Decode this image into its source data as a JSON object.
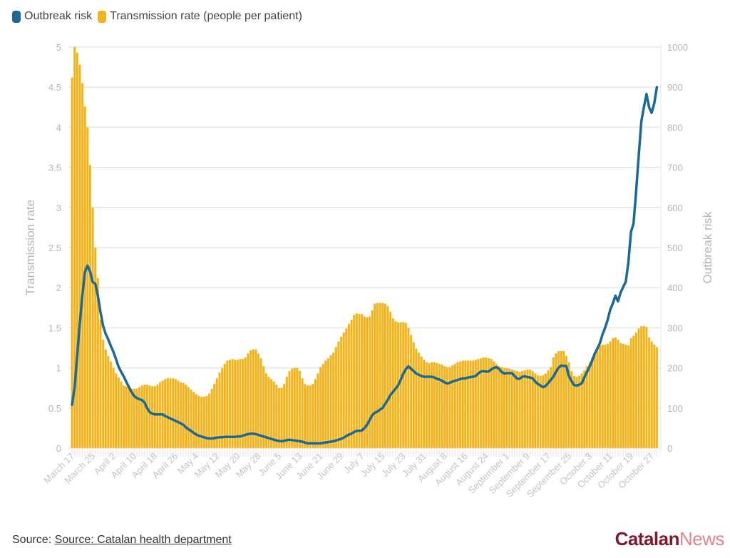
{
  "legend": {
    "items": [
      {
        "label": "Outbreak risk",
        "color": "#1d6996"
      },
      {
        "label": "Transmission rate (people per patient)",
        "color": "#f2b21a"
      }
    ]
  },
  "footer": {
    "source_prefix": "Source:",
    "source_link": "Source: Catalan health department",
    "logo_part1": "Catalan",
    "logo_part2": "News"
  },
  "chart_data": {
    "type": "bar+line",
    "title": "",
    "start_date": "March 17",
    "x_tick_labels": [
      "March 17",
      "March 25",
      "April 2",
      "April 10",
      "April 18",
      "April 26",
      "May 4",
      "May 12",
      "May 20",
      "May 28",
      "June 5",
      "June 13",
      "June 21",
      "June 29",
      "July 7",
      "July 15",
      "July 23",
      "July 31",
      "August 8",
      "August 16",
      "August 24",
      "September 1",
      "September 9",
      "September 17",
      "September 25",
      "October 3",
      "October 11",
      "October 19",
      "October 27"
    ],
    "x_tick_every_days": 8,
    "left_axis": {
      "label": "Transmission rate",
      "range": [
        0,
        5
      ],
      "ticks": [
        "0",
        "0.5",
        "1",
        "1.5",
        "2",
        "2.5",
        "3",
        "3.5",
        "4",
        "4.5",
        "5"
      ]
    },
    "right_axis": {
      "label": "Outbreak risk",
      "range": [
        0,
        1000
      ],
      "ticks": [
        "0",
        "100",
        "200",
        "300",
        "400",
        "500",
        "600",
        "700",
        "800",
        "900",
        "1000"
      ]
    },
    "grid": true,
    "legend_position": "top-left",
    "series": [
      {
        "name": "Transmission rate (people per patient)",
        "type": "bar",
        "axis": "left",
        "color": "#f2b21a",
        "values": [
          4.62,
          5.0,
          4.93,
          4.78,
          4.55,
          4.26,
          4.0,
          3.53,
          3.0,
          2.5,
          2.12,
          1.6,
          1.35,
          1.23,
          1.15,
          1.08,
          1.0,
          0.93,
          0.88,
          0.83,
          0.78,
          0.77,
          0.76,
          0.74,
          0.74,
          0.74,
          0.76,
          0.78,
          0.79,
          0.79,
          0.78,
          0.77,
          0.77,
          0.79,
          0.82,
          0.84,
          0.86,
          0.87,
          0.87,
          0.87,
          0.86,
          0.84,
          0.82,
          0.81,
          0.79,
          0.76,
          0.73,
          0.7,
          0.67,
          0.65,
          0.64,
          0.64,
          0.65,
          0.68,
          0.74,
          0.8,
          0.87,
          0.94,
          1.0,
          1.05,
          1.09,
          1.1,
          1.11,
          1.1,
          1.1,
          1.11,
          1.11,
          1.13,
          1.18,
          1.22,
          1.23,
          1.23,
          1.18,
          1.12,
          1.02,
          0.93,
          0.89,
          0.86,
          0.83,
          0.79,
          0.75,
          0.75,
          0.8,
          0.89,
          0.96,
          0.99,
          1.0,
          1.0,
          0.96,
          0.87,
          0.8,
          0.78,
          0.78,
          0.8,
          0.86,
          0.93,
          1.01,
          1.05,
          1.09,
          1.12,
          1.16,
          1.19,
          1.26,
          1.33,
          1.39,
          1.44,
          1.49,
          1.55,
          1.6,
          1.66,
          1.68,
          1.67,
          1.67,
          1.64,
          1.63,
          1.64,
          1.72,
          1.8,
          1.81,
          1.81,
          1.81,
          1.8,
          1.77,
          1.7,
          1.62,
          1.58,
          1.57,
          1.57,
          1.57,
          1.56,
          1.5,
          1.41,
          1.32,
          1.24,
          1.19,
          1.14,
          1.1,
          1.07,
          1.06,
          1.07,
          1.07,
          1.06,
          1.05,
          1.04,
          1.02,
          1.01,
          1.01,
          1.03,
          1.05,
          1.07,
          1.08,
          1.09,
          1.09,
          1.09,
          1.09,
          1.09,
          1.1,
          1.11,
          1.12,
          1.13,
          1.13,
          1.12,
          1.11,
          1.08,
          1.05,
          1.02,
          1.01,
          1.0,
          1.0,
          0.99,
          0.98,
          0.97,
          0.96,
          0.95,
          0.96,
          0.97,
          0.98,
          0.98,
          0.96,
          0.93,
          0.91,
          0.9,
          0.91,
          0.93,
          0.97,
          1.01,
          1.13,
          1.18,
          1.21,
          1.21,
          1.21,
          1.15,
          1.07,
          0.96,
          0.9,
          0.89,
          0.9,
          0.93,
          0.97,
          1.02,
          1.07,
          1.13,
          1.19,
          1.24,
          1.28,
          1.29,
          1.29,
          1.3,
          1.33,
          1.37,
          1.38,
          1.35,
          1.31,
          1.3,
          1.29,
          1.28,
          1.37,
          1.4,
          1.44,
          1.49,
          1.52,
          1.52,
          1.51,
          1.38,
          1.33,
          1.29,
          1.26
        ]
      },
      {
        "name": "Outbreak risk",
        "type": "line",
        "axis": "right",
        "color": "#1d6996",
        "values": [
          108,
          150,
          230,
          310,
          380,
          440,
          455,
          440,
          414,
          410,
          380,
          340,
          305,
          285,
          271,
          255,
          240,
          222,
          203,
          190,
          179,
          165,
          152,
          140,
          130,
          125,
          122,
          120,
          114,
          100,
          90,
          86,
          84,
          84,
          84,
          84,
          80,
          77,
          74,
          71,
          68,
          65,
          62,
          58,
          52,
          47,
          43,
          38,
          34,
          31,
          29,
          27,
          25,
          24,
          24,
          25,
          26,
          27,
          27,
          28,
          28,
          28,
          28,
          28,
          29,
          29,
          31,
          33,
          35,
          36,
          36,
          35,
          33,
          31,
          29,
          27,
          25,
          23,
          21,
          19,
          18,
          17,
          18,
          20,
          21,
          20,
          19,
          18,
          17,
          16,
          14,
          12,
          12,
          12,
          12,
          12,
          12,
          13,
          14,
          15,
          16,
          17,
          19,
          21,
          23,
          26,
          30,
          34,
          36,
          40,
          43,
          43,
          44,
          50,
          58,
          70,
          82,
          88,
          91,
          96,
          100,
          110,
          120,
          132,
          140,
          148,
          156,
          170,
          185,
          197,
          204,
          198,
          192,
          186,
          183,
          180,
          178,
          178,
          178,
          178,
          176,
          173,
          171,
          168,
          164,
          161,
          163,
          166,
          168,
          170,
          172,
          174,
          174,
          176,
          177,
          178,
          180,
          186,
          191,
          192,
          191,
          191,
          196,
          200,
          202,
          198,
          190,
          186,
          187,
          187,
          187,
          180,
          173,
          173,
          178,
          179,
          177,
          176,
          174,
          166,
          160,
          156,
          152,
          155,
          162,
          170,
          178,
          190,
          200,
          206,
          205,
          205,
          180,
          168,
          157,
          156,
          158,
          162,
          176,
          190,
          203,
          218,
          236,
          248,
          262,
          283,
          300,
          320,
          345,
          361,
          380,
          366,
          388,
          402,
          415,
          462,
          539,
          560,
          640,
          730,
          814,
          850,
          883,
          850,
          836,
          860,
          900
        ]
      }
    ]
  }
}
